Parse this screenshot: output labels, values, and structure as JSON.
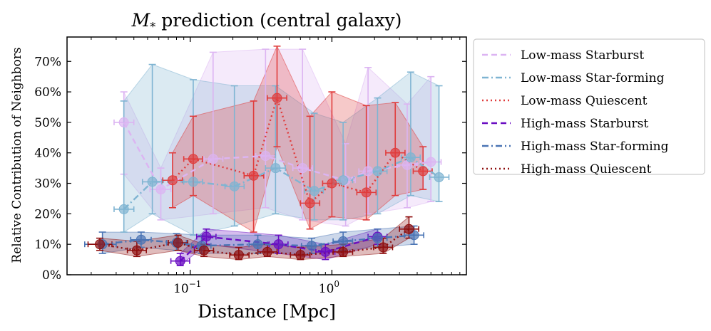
{
  "chart_data": {
    "type": "line",
    "title": "prediction (central galaxy)",
    "title_symbol": "M",
    "title_subscript": "*",
    "xlabel": "Distance [Mpc]",
    "ylabel": "Relative Contribution of Neighbors",
    "xscale": "log",
    "xlim": [
      0.0135,
      8.9
    ],
    "ylim": [
      0,
      0.78
    ],
    "x_ticks": [
      {
        "value": 0.1,
        "base": "10",
        "exp": "−1"
      },
      {
        "value": 1,
        "base": "10",
        "exp": "0"
      }
    ],
    "y_ticks": [
      {
        "value": 0.0,
        "label": "0%"
      },
      {
        "value": 0.1,
        "label": "10%"
      },
      {
        "value": 0.2,
        "label": "20%"
      },
      {
        "value": 0.3,
        "label": "30%"
      },
      {
        "value": 0.4,
        "label": "40%"
      },
      {
        "value": 0.5,
        "label": "50%"
      },
      {
        "value": 0.6,
        "label": "60%"
      },
      {
        "value": 0.7,
        "label": "70%"
      }
    ],
    "legend_position": "outside-right",
    "series": [
      {
        "name": "Low-mass Starburst",
        "color": "#dcb4f2",
        "dash": "dashed",
        "points": [
          {
            "x": 0.034,
            "y": 0.5,
            "lo": 0.33,
            "hi": 0.6,
            "xlo": 0.029,
            "xhi": 0.04
          },
          {
            "x": 0.062,
            "y": 0.28,
            "lo": 0.18,
            "hi": 0.35,
            "xlo": 0.052,
            "xhi": 0.073
          },
          {
            "x": 0.145,
            "y": 0.38,
            "lo": 0.2,
            "hi": 0.73,
            "xlo": 0.125,
            "xhi": 0.17
          },
          {
            "x": 0.34,
            "y": 0.39,
            "lo": 0.22,
            "hi": 0.74,
            "xlo": 0.29,
            "xhi": 0.4
          },
          {
            "x": 0.62,
            "y": 0.35,
            "lo": 0.18,
            "hi": 0.74,
            "xlo": 0.53,
            "xhi": 0.73
          },
          {
            "x": 1.25,
            "y": 0.31,
            "lo": 0.16,
            "hi": 0.43,
            "xlo": 1.06,
            "xhi": 1.46
          },
          {
            "x": 1.8,
            "y": 0.34,
            "lo": 0.2,
            "hi": 0.68,
            "xlo": 1.55,
            "xhi": 2.1
          },
          {
            "x": 3.4,
            "y": 0.36,
            "lo": 0.22,
            "hi": 0.56,
            "xlo": 2.9,
            "xhi": 4.0
          },
          {
            "x": 5.0,
            "y": 0.37,
            "lo": 0.24,
            "hi": 0.65,
            "xlo": 4.2,
            "xhi": 5.9
          }
        ]
      },
      {
        "name": "Low-mass Star-forming",
        "color": "#7fb4d2",
        "dash": "dashdot",
        "points": [
          {
            "x": 0.034,
            "y": 0.215,
            "lo": 0.14,
            "hi": 0.57,
            "xlo": 0.029,
            "xhi": 0.04
          },
          {
            "x": 0.054,
            "y": 0.305,
            "lo": 0.2,
            "hi": 0.69,
            "xlo": 0.046,
            "xhi": 0.063
          },
          {
            "x": 0.105,
            "y": 0.305,
            "lo": 0.13,
            "hi": 0.64,
            "xlo": 0.09,
            "xhi": 0.122
          },
          {
            "x": 0.205,
            "y": 0.29,
            "lo": 0.16,
            "hi": 0.62,
            "xlo": 0.176,
            "xhi": 0.24
          },
          {
            "x": 0.4,
            "y": 0.35,
            "lo": 0.2,
            "hi": 0.62,
            "xlo": 0.34,
            "xhi": 0.47
          },
          {
            "x": 0.75,
            "y": 0.275,
            "lo": 0.18,
            "hi": 0.53,
            "xlo": 0.64,
            "xhi": 0.87
          },
          {
            "x": 1.2,
            "y": 0.31,
            "lo": 0.18,
            "hi": 0.5,
            "xlo": 1.02,
            "xhi": 1.4
          },
          {
            "x": 2.1,
            "y": 0.34,
            "lo": 0.2,
            "hi": 0.58,
            "xlo": 1.8,
            "xhi": 2.45
          },
          {
            "x": 3.6,
            "y": 0.385,
            "lo": 0.26,
            "hi": 0.665,
            "xlo": 3.1,
            "xhi": 4.2
          },
          {
            "x": 5.7,
            "y": 0.32,
            "lo": 0.24,
            "hi": 0.62,
            "xlo": 4.9,
            "xhi": 6.7
          }
        ]
      },
      {
        "name": "Low-mass Quiescent",
        "color": "#e03c3c",
        "dash": "dotted",
        "points": [
          {
            "x": 0.075,
            "y": 0.31,
            "lo": 0.22,
            "hi": 0.4,
            "xlo": 0.064,
            "xhi": 0.088
          },
          {
            "x": 0.105,
            "y": 0.38,
            "lo": 0.26,
            "hi": 0.52,
            "xlo": 0.09,
            "xhi": 0.122
          },
          {
            "x": 0.28,
            "y": 0.325,
            "lo": 0.14,
            "hi": 0.57,
            "xlo": 0.24,
            "xhi": 0.33
          },
          {
            "x": 0.41,
            "y": 0.58,
            "lo": 0.42,
            "hi": 0.75,
            "xlo": 0.35,
            "xhi": 0.48
          },
          {
            "x": 0.7,
            "y": 0.235,
            "lo": 0.15,
            "hi": 0.52,
            "xlo": 0.6,
            "xhi": 0.82
          },
          {
            "x": 1.0,
            "y": 0.3,
            "lo": 0.19,
            "hi": 0.6,
            "xlo": 0.86,
            "xhi": 1.17
          },
          {
            "x": 1.75,
            "y": 0.27,
            "lo": 0.18,
            "hi": 0.555,
            "xlo": 1.5,
            "xhi": 2.05
          },
          {
            "x": 2.8,
            "y": 0.4,
            "lo": 0.26,
            "hi": 0.565,
            "xlo": 2.4,
            "xhi": 3.28
          },
          {
            "x": 4.4,
            "y": 0.34,
            "lo": 0.28,
            "hi": 0.42,
            "xlo": 3.75,
            "xhi": 5.1
          }
        ]
      },
      {
        "name": "High-mass Starburst",
        "color": "#6a0dc2",
        "dash": "dashed",
        "points": [
          {
            "x": 0.085,
            "y": 0.045,
            "lo": 0.03,
            "hi": 0.07,
            "xlo": 0.073,
            "xhi": 0.099
          },
          {
            "x": 0.13,
            "y": 0.125,
            "lo": 0.1,
            "hi": 0.15,
            "xlo": 0.111,
            "xhi": 0.152
          },
          {
            "x": 0.42,
            "y": 0.1,
            "lo": 0.07,
            "hi": 0.13,
            "xlo": 0.36,
            "xhi": 0.49
          },
          {
            "x": 0.9,
            "y": 0.075,
            "lo": 0.05,
            "hi": 0.1,
            "xlo": 0.77,
            "xhi": 1.05
          },
          {
            "x": 2.1,
            "y": 0.125,
            "lo": 0.1,
            "hi": 0.15,
            "xlo": 1.8,
            "xhi": 2.45
          }
        ]
      },
      {
        "name": "High-mass Star-forming",
        "color": "#4a74b4",
        "dash": "dashdot",
        "points": [
          {
            "x": 0.024,
            "y": 0.1,
            "lo": 0.07,
            "hi": 0.14,
            "xlo": 0.018,
            "xhi": 0.03
          },
          {
            "x": 0.045,
            "y": 0.115,
            "lo": 0.09,
            "hi": 0.14,
            "xlo": 0.038,
            "xhi": 0.053
          },
          {
            "x": 0.08,
            "y": 0.105,
            "lo": 0.08,
            "hi": 0.135,
            "xlo": 0.068,
            "xhi": 0.094
          },
          {
            "x": 0.12,
            "y": 0.095,
            "lo": 0.07,
            "hi": 0.13,
            "xlo": 0.102,
            "xhi": 0.14
          },
          {
            "x": 0.3,
            "y": 0.1,
            "lo": 0.07,
            "hi": 0.13,
            "xlo": 0.26,
            "xhi": 0.35
          },
          {
            "x": 0.72,
            "y": 0.095,
            "lo": 0.07,
            "hi": 0.12,
            "xlo": 0.61,
            "xhi": 0.84
          },
          {
            "x": 1.2,
            "y": 0.11,
            "lo": 0.08,
            "hi": 0.14,
            "xlo": 1.02,
            "xhi": 1.4
          },
          {
            "x": 2.1,
            "y": 0.12,
            "lo": 0.09,
            "hi": 0.15,
            "xlo": 1.8,
            "xhi": 2.45
          },
          {
            "x": 3.8,
            "y": 0.13,
            "lo": 0.1,
            "hi": 0.16,
            "xlo": 3.25,
            "xhi": 4.45
          }
        ]
      },
      {
        "name": "High-mass Quiescent",
        "color": "#8e0e0e",
        "dash": "dotted",
        "points": [
          {
            "x": 0.023,
            "y": 0.1,
            "lo": 0.08,
            "hi": 0.12,
            "xlo": 0.019,
            "xhi": 0.028
          },
          {
            "x": 0.042,
            "y": 0.08,
            "lo": 0.06,
            "hi": 0.11,
            "xlo": 0.036,
            "xhi": 0.049
          },
          {
            "x": 0.082,
            "y": 0.105,
            "lo": 0.08,
            "hi": 0.13,
            "xlo": 0.07,
            "xhi": 0.096
          },
          {
            "x": 0.125,
            "y": 0.08,
            "lo": 0.06,
            "hi": 0.1,
            "xlo": 0.107,
            "xhi": 0.146
          },
          {
            "x": 0.22,
            "y": 0.065,
            "lo": 0.05,
            "hi": 0.09,
            "xlo": 0.19,
            "xhi": 0.26
          },
          {
            "x": 0.35,
            "y": 0.075,
            "lo": 0.06,
            "hi": 0.1,
            "xlo": 0.3,
            "xhi": 0.41
          },
          {
            "x": 0.6,
            "y": 0.065,
            "lo": 0.05,
            "hi": 0.09,
            "xlo": 0.51,
            "xhi": 0.7
          },
          {
            "x": 1.2,
            "y": 0.075,
            "lo": 0.06,
            "hi": 0.1,
            "xlo": 1.02,
            "xhi": 1.4
          },
          {
            "x": 2.3,
            "y": 0.09,
            "lo": 0.07,
            "hi": 0.12,
            "xlo": 1.97,
            "xhi": 2.68
          },
          {
            "x": 3.5,
            "y": 0.15,
            "lo": 0.12,
            "hi": 0.19,
            "xlo": 3.0,
            "xhi": 4.1
          }
        ]
      }
    ]
  }
}
